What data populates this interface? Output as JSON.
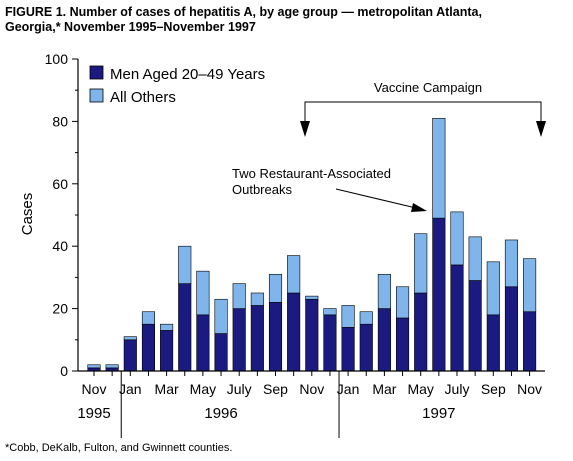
{
  "title_line1": "FIGURE 1. Number of cases of hepatitis A, by age group — metropolitan Atlanta,",
  "title_line2": "Georgia,* November 1995–November 1997",
  "footnote": "*Cobb, DeKalb, Fulton, and Gwinnett counties.",
  "annotations": {
    "campaign": "Vaccine Campaign",
    "outbreak_line1": "Two Restaurant-Associated",
    "outbreak_line2": "Outbreaks"
  },
  "colors": {
    "men": "#1a1a80",
    "others": "#7fb5ea"
  },
  "chart_data": {
    "type": "bar",
    "stacked": true,
    "ylabel": "Cases",
    "ylim": [
      0,
      100
    ],
    "yticks": [
      0,
      20,
      40,
      60,
      80,
      100
    ],
    "legend_position": "top-left",
    "categories": [
      "Nov 1995",
      "Dec 1995",
      "Jan 1996",
      "Feb 1996",
      "Mar 1996",
      "Apr 1996",
      "May 1996",
      "Jun 1996",
      "Jul 1996",
      "Aug 1996",
      "Sep 1996",
      "Oct 1996",
      "Nov 1996",
      "Dec 1996",
      "Jan 1997",
      "Feb 1997",
      "Mar 1997",
      "Apr 1997",
      "May 1997",
      "Jun 1997",
      "Jul 1997",
      "Aug 1997",
      "Sep 1997",
      "Oct 1997",
      "Nov 1997"
    ],
    "series": [
      {
        "name": "Men Aged 20–49 Years",
        "values": [
          1,
          1,
          10,
          15,
          13,
          28,
          18,
          12,
          20,
          21,
          22,
          25,
          23,
          18,
          14,
          15,
          20,
          17,
          25,
          49,
          34,
          29,
          18,
          27,
          19
        ]
      },
      {
        "name": "All Others",
        "values": [
          1,
          1,
          1,
          4,
          2,
          12,
          14,
          11,
          8,
          4,
          9,
          12,
          1,
          2,
          7,
          4,
          11,
          10,
          19,
          32,
          17,
          14,
          17,
          15,
          17
        ]
      }
    ],
    "x_tick_labels": [
      "Nov",
      "Jan",
      "Mar",
      "May",
      "July",
      "Sep",
      "Nov",
      "Jan",
      "Mar",
      "May",
      "July",
      "Sep",
      "Nov"
    ],
    "year_labels": [
      "1995",
      "1996",
      "1997"
    ]
  }
}
